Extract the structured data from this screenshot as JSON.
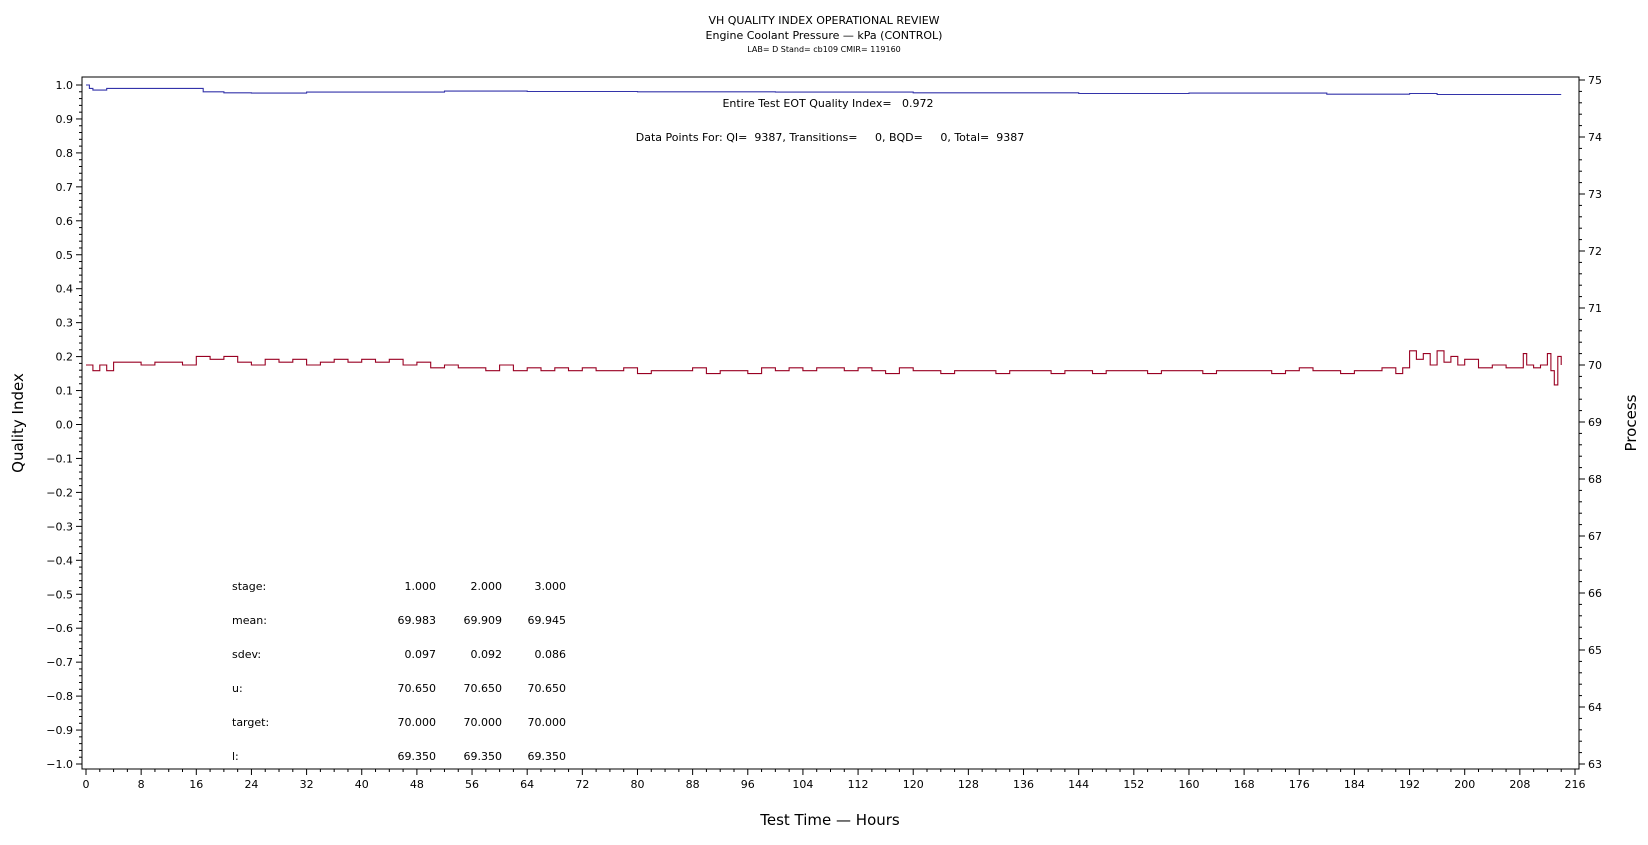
{
  "chart_data": {
    "type": "line",
    "title": "VH QUALITY INDEX OPERATIONAL REVIEW",
    "subtitle": "Engine Coolant Pressure — kPa (CONTROL)",
    "subtitle2": "LAB= D Stand= cb109 CMIR= 119160",
    "xlabel": "Test Time — Hours",
    "ylabel_left": "Quality Index",
    "ylabel_right": "Process",
    "xlim": [
      0,
      216
    ],
    "ylim_left": [
      -1.0,
      1.0
    ],
    "ylim_right": [
      63,
      75
    ],
    "x_ticks": [
      0,
      8,
      16,
      24,
      32,
      40,
      48,
      56,
      64,
      72,
      80,
      88,
      96,
      104,
      112,
      120,
      128,
      136,
      144,
      152,
      160,
      168,
      176,
      184,
      192,
      200,
      208,
      216
    ],
    "y_ticks_left": [
      1.0,
      0.9,
      0.8,
      0.7,
      0.6,
      0.5,
      0.4,
      0.3,
      0.2,
      0.1,
      0.0,
      -0.1,
      -0.2,
      -0.3,
      -0.4,
      -0.5,
      -0.6,
      -0.7,
      -0.8,
      -0.9,
      -1.0
    ],
    "y_ticks_right": [
      75,
      74,
      73,
      72,
      71,
      70,
      69,
      68,
      67,
      66,
      65,
      64,
      63
    ],
    "annotation_qi": "Entire Test EOT Quality Index=   0.972",
    "annotation_points": "Data Points For: QI=  9387, Transitions=     0, BQD=     0, Total=  9387",
    "stats_table": {
      "rows": [
        {
          "label": "stage:",
          "values": [
            "1.000",
            "2.000",
            "3.000"
          ]
        },
        {
          "label": "mean:",
          "values": [
            "69.983",
            "69.909",
            "69.945"
          ]
        },
        {
          "label": "sdev:",
          "values": [
            "0.097",
            "0.092",
            "0.086"
          ]
        },
        {
          "label": "u:",
          "values": [
            "70.650",
            "70.650",
            "70.650"
          ]
        },
        {
          "label": "target:",
          "values": [
            "70.000",
            "70.000",
            "70.000"
          ]
        },
        {
          "label": "l:",
          "values": [
            "69.350",
            "69.350",
            "69.350"
          ]
        }
      ]
    },
    "series": [
      {
        "axis": "left",
        "color": "#3333aa",
        "x": [
          0,
          0.5,
          1,
          2,
          3,
          4,
          6,
          10,
          16,
          17,
          20,
          24,
          32,
          52,
          64,
          80,
          100,
          120,
          144,
          160,
          180,
          192,
          196,
          214
        ],
        "y": [
          1.0,
          0.99,
          0.985,
          0.985,
          0.99,
          0.99,
          0.99,
          0.99,
          0.99,
          0.98,
          0.977,
          0.976,
          0.979,
          0.982,
          0.981,
          0.98,
          0.979,
          0.977,
          0.975,
          0.976,
          0.973,
          0.975,
          0.972,
          0.972
        ]
      },
      {
        "axis": "right",
        "color": "#990022",
        "x": [
          0,
          1,
          2,
          3,
          4,
          6,
          8,
          10,
          12,
          14,
          16,
          18,
          20,
          22,
          24,
          26,
          28,
          30,
          32,
          34,
          36,
          38,
          40,
          42,
          44,
          46,
          48,
          50,
          52,
          54,
          56,
          58,
          60,
          62,
          64,
          66,
          68,
          70,
          72,
          74,
          76,
          78,
          80,
          82,
          84,
          86,
          88,
          90,
          92,
          94,
          96,
          98,
          100,
          102,
          104,
          106,
          108,
          110,
          112,
          114,
          116,
          118,
          120,
          122,
          124,
          126,
          128,
          130,
          132,
          134,
          136,
          138,
          140,
          142,
          144,
          146,
          148,
          150,
          152,
          154,
          156,
          158,
          160,
          162,
          164,
          166,
          168,
          170,
          172,
          174,
          176,
          178,
          180,
          182,
          184,
          186,
          188,
          190,
          191,
          192,
          193,
          194,
          195,
          196,
          197,
          198,
          199,
          200,
          202,
          204,
          206,
          208,
          208.5,
          209,
          210,
          211,
          212,
          212.5,
          213,
          213.5,
          214
        ],
        "y": [
          70.0,
          69.9,
          70.0,
          69.9,
          70.05,
          70.05,
          70.0,
          70.05,
          70.05,
          70.0,
          70.15,
          70.1,
          70.15,
          70.05,
          70.0,
          70.1,
          70.05,
          70.1,
          70.0,
          70.05,
          70.1,
          70.05,
          70.1,
          70.05,
          70.1,
          70.0,
          70.05,
          69.95,
          70.0,
          69.95,
          69.95,
          69.9,
          70.0,
          69.9,
          69.95,
          69.9,
          69.95,
          69.9,
          69.95,
          69.9,
          69.9,
          69.95,
          69.85,
          69.9,
          69.9,
          69.9,
          69.95,
          69.85,
          69.9,
          69.9,
          69.85,
          69.95,
          69.9,
          69.95,
          69.9,
          69.95,
          69.95,
          69.9,
          69.95,
          69.9,
          69.85,
          69.95,
          69.9,
          69.9,
          69.85,
          69.9,
          69.9,
          69.9,
          69.85,
          69.9,
          69.9,
          69.9,
          69.85,
          69.9,
          69.9,
          69.85,
          69.9,
          69.9,
          69.9,
          69.85,
          69.9,
          69.9,
          69.9,
          69.85,
          69.9,
          69.9,
          69.9,
          69.9,
          69.85,
          69.9,
          69.95,
          69.9,
          69.9,
          69.85,
          69.9,
          69.9,
          69.95,
          69.85,
          69.95,
          70.25,
          70.1,
          70.2,
          70.0,
          70.25,
          70.05,
          70.15,
          70.0,
          70.1,
          69.95,
          70.0,
          69.95,
          69.95,
          70.2,
          70.0,
          69.95,
          70.0,
          70.2,
          69.9,
          69.65,
          70.15,
          70.0
        ]
      }
    ]
  }
}
